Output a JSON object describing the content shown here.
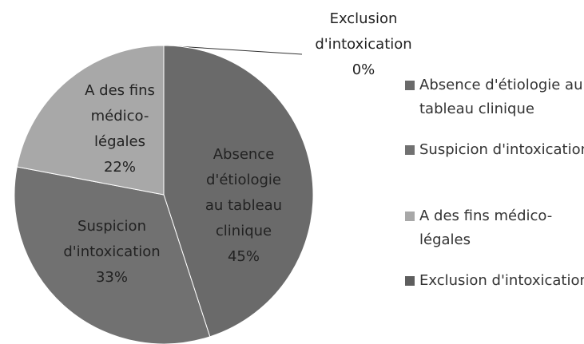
{
  "chart_data": {
    "type": "pie",
    "categories": [
      "Absence d'étiologie au tableau clinique",
      "Suspicion d'intoxication",
      "A des fins médico-légales",
      "Exclusion d'intoxication"
    ],
    "values": [
      45,
      33,
      22,
      0
    ],
    "value_labels": [
      "45%",
      "33%",
      "22%",
      "0%"
    ],
    "colors": [
      "#6a6a6a",
      "#717171",
      "#a8a8a8",
      "#5e5e5e"
    ],
    "legend": "right"
  }
}
